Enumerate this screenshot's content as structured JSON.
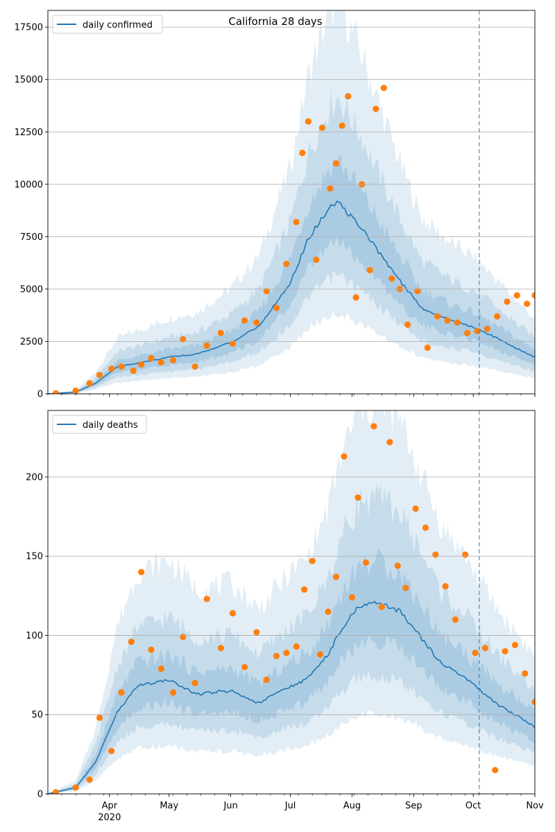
{
  "figure": {
    "title": "California 28 days"
  },
  "chart_data": [
    {
      "type": "line",
      "title": "California 28 days",
      "xlabel": "",
      "ylabel": "",
      "x_tick_labels": [
        "Apr",
        "May",
        "Jun",
        "Jul",
        "Aug",
        "Sep",
        "Oct",
        "Nov"
      ],
      "x_tick_year": "2020",
      "x_range": [
        "2020-03-01",
        "2020-11-01"
      ],
      "y_range": [
        0,
        18300
      ],
      "y_ticks": [
        0,
        2500,
        5000,
        7500,
        10000,
        12500,
        15000,
        17500
      ],
      "y_tick_labels": [
        "0",
        "2500",
        "5000",
        "7500",
        "10000",
        "12500",
        "15000",
        "17500"
      ],
      "grid": "horizontal",
      "legend_position": "top-left",
      "forecast_start": "2020-10-04",
      "series": [
        {
          "name": "daily confirmed",
          "kind": "line",
          "color": "#1f77b4",
          "x": [
            "2020-03-01",
            "2020-03-15",
            "2020-03-25",
            "2020-04-05",
            "2020-04-20",
            "2020-05-01",
            "2020-05-15",
            "2020-06-01",
            "2020-06-15",
            "2020-07-01",
            "2020-07-10",
            "2020-07-20",
            "2020-07-25",
            "2020-08-05",
            "2020-08-15",
            "2020-08-25",
            "2020-09-05",
            "2020-09-20",
            "2020-10-01",
            "2020-10-10",
            "2020-10-20",
            "2020-11-01"
          ],
          "y": [
            0,
            80,
            500,
            1300,
            1550,
            1750,
            1900,
            2450,
            3200,
            5300,
            7400,
            8800,
            9150,
            8000,
            6700,
            5400,
            4100,
            3500,
            3200,
            2800,
            2300,
            1750
          ]
        },
        {
          "name": "",
          "kind": "points",
          "color": "#ff7f0e",
          "x": [
            "2020-03-05",
            "2020-03-15",
            "2020-03-22",
            "2020-03-27",
            "2020-04-02",
            "2020-04-07",
            "2020-04-13",
            "2020-04-17",
            "2020-04-22",
            "2020-04-27",
            "2020-05-03",
            "2020-05-08",
            "2020-05-14",
            "2020-05-20",
            "2020-05-27",
            "2020-06-02",
            "2020-06-08",
            "2020-06-14",
            "2020-06-19",
            "2020-06-24",
            "2020-06-29",
            "2020-07-04",
            "2020-07-07",
            "2020-07-10",
            "2020-07-14",
            "2020-07-17",
            "2020-07-21",
            "2020-07-24",
            "2020-07-27",
            "2020-07-30",
            "2020-08-03",
            "2020-08-06",
            "2020-08-10",
            "2020-08-13",
            "2020-08-17",
            "2020-08-21",
            "2020-08-25",
            "2020-08-29",
            "2020-09-03",
            "2020-09-08",
            "2020-09-13",
            "2020-09-18",
            "2020-09-23",
            "2020-09-28",
            "2020-10-03",
            "2020-10-08",
            "2020-10-13",
            "2020-10-18",
            "2020-10-23",
            "2020-10-28",
            "2020-11-01"
          ],
          "y": [
            20,
            150,
            500,
            900,
            1200,
            1300,
            1100,
            1400,
            1700,
            1500,
            1600,
            2600,
            1300,
            2300,
            2900,
            2400,
            3500,
            3400,
            4900,
            4100,
            6200,
            8200,
            11500,
            13000,
            6400,
            12700,
            9800,
            11000,
            12800,
            14200,
            4600,
            10000,
            5900,
            13600,
            14600,
            5500,
            5000,
            3300,
            4900,
            2200,
            3700,
            3500,
            3400,
            2900,
            3000,
            3100,
            3700,
            4400,
            4700,
            4300,
            4700
          ]
        }
      ]
    },
    {
      "type": "line",
      "title": "",
      "xlabel": "",
      "ylabel": "",
      "x_tick_labels": [
        "Apr",
        "May",
        "Jun",
        "Jul",
        "Aug",
        "Sep",
        "Oct",
        "Nov"
      ],
      "x_tick_year": "2020",
      "x_range": [
        "2020-03-01",
        "2020-11-01"
      ],
      "y_range": [
        0,
        242
      ],
      "y_ticks": [
        0,
        50,
        100,
        150,
        200
      ],
      "y_tick_labels": [
        "0",
        "50",
        "100",
        "150",
        "200"
      ],
      "grid": "horizontal",
      "legend_position": "top-left",
      "forecast_start": "2020-10-04",
      "series": [
        {
          "name": "daily deaths",
          "kind": "line",
          "color": "#1f77b4",
          "x": [
            "2020-03-01",
            "2020-03-15",
            "2020-03-25",
            "2020-04-05",
            "2020-04-15",
            "2020-05-01",
            "2020-05-15",
            "2020-06-01",
            "2020-06-15",
            "2020-07-01",
            "2020-07-10",
            "2020-07-20",
            "2020-07-27",
            "2020-08-05",
            "2020-08-15",
            "2020-08-25",
            "2020-09-05",
            "2020-09-15",
            "2020-09-25",
            "2020-10-05",
            "2020-10-15",
            "2020-10-25",
            "2020-11-01"
          ],
          "y": [
            0,
            4,
            20,
            52,
            68,
            72,
            63,
            65,
            57,
            68,
            73,
            88,
            105,
            119,
            120,
            115,
            98,
            82,
            75,
            65,
            55,
            48,
            42
          ]
        },
        {
          "name": "",
          "kind": "points",
          "color": "#ff7f0e",
          "x": [
            "2020-03-05",
            "2020-03-15",
            "2020-03-22",
            "2020-03-27",
            "2020-04-02",
            "2020-04-07",
            "2020-04-12",
            "2020-04-17",
            "2020-04-22",
            "2020-04-27",
            "2020-05-03",
            "2020-05-08",
            "2020-05-14",
            "2020-05-20",
            "2020-05-27",
            "2020-06-02",
            "2020-06-08",
            "2020-06-14",
            "2020-06-19",
            "2020-06-24",
            "2020-06-29",
            "2020-07-04",
            "2020-07-08",
            "2020-07-12",
            "2020-07-16",
            "2020-07-20",
            "2020-07-24",
            "2020-07-28",
            "2020-08-01",
            "2020-08-04",
            "2020-08-08",
            "2020-08-12",
            "2020-08-16",
            "2020-08-20",
            "2020-08-24",
            "2020-08-28",
            "2020-09-02",
            "2020-09-07",
            "2020-09-12",
            "2020-09-17",
            "2020-09-22",
            "2020-09-27",
            "2020-10-02",
            "2020-10-07",
            "2020-10-12",
            "2020-10-17",
            "2020-10-22",
            "2020-10-27",
            "2020-11-01"
          ],
          "y": [
            1,
            4,
            9,
            48,
            27,
            64,
            96,
            140,
            91,
            79,
            64,
            99,
            70,
            123,
            92,
            114,
            80,
            102,
            72,
            87,
            89,
            93,
            129,
            147,
            88,
            115,
            137,
            213,
            124,
            187,
            146,
            232,
            118,
            222,
            144,
            130,
            180,
            168,
            151,
            131,
            110,
            151,
            89,
            92,
            15,
            90,
            94,
            76,
            58
          ]
        }
      ]
    }
  ]
}
